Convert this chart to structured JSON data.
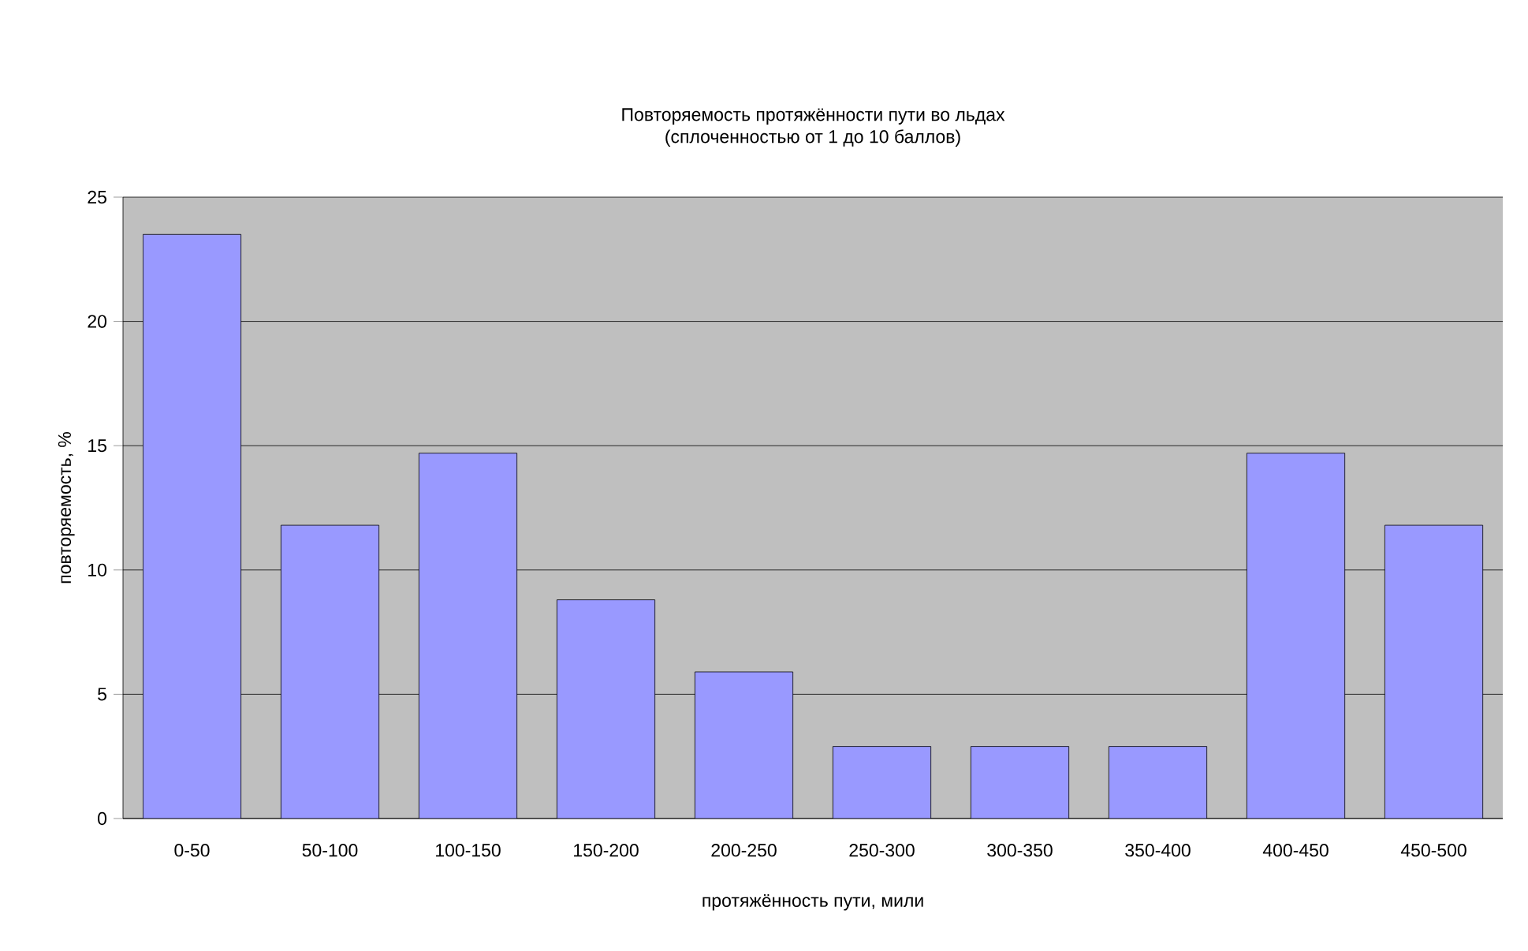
{
  "chart_data": {
    "type": "bar",
    "title": "Повторяемость протяжённости пути во льдах",
    "subtitle": "(сплоченностью от 1 до 10 баллов)",
    "xlabel": "протяжённость пути, мили",
    "ylabel": "повторяемость, %",
    "categories": [
      "0-50",
      "50-100",
      "100-150",
      "150-200",
      "200-250",
      "250-300",
      "300-350",
      "350-400",
      "400-450",
      "450-500"
    ],
    "values": [
      23.5,
      11.8,
      14.7,
      8.8,
      5.9,
      2.9,
      2.9,
      2.9,
      14.7,
      11.8
    ],
    "color": "#9999ff",
    "ylim": [
      0,
      25
    ],
    "yticks": [
      0,
      5,
      10,
      15,
      20,
      25
    ],
    "grid": "y"
  }
}
